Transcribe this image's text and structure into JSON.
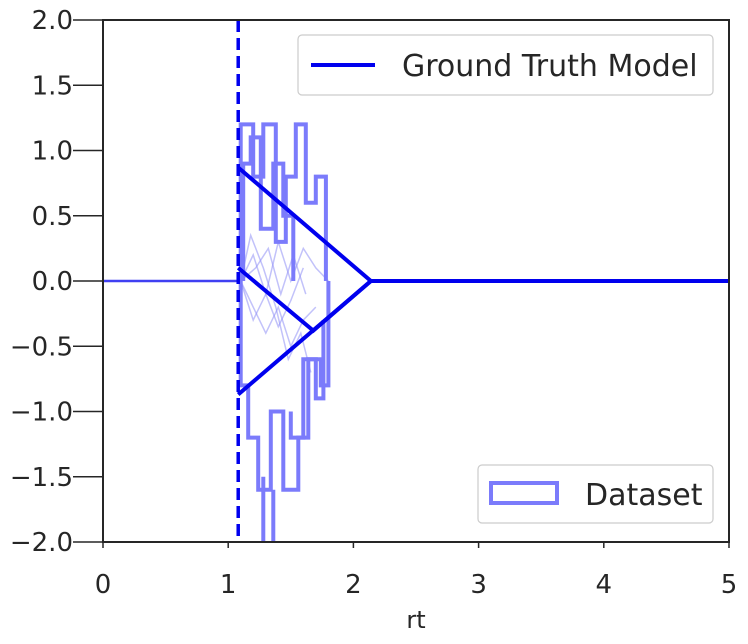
{
  "chart_data": {
    "type": "line",
    "title": "",
    "xlabel": "rt",
    "ylabel": "",
    "xlim": [
      0,
      5
    ],
    "ylim": [
      -2.0,
      2.0
    ],
    "grid": false,
    "x_ticks": [
      "0",
      "1",
      "2",
      "3",
      "4",
      "5"
    ],
    "y_ticks": [
      "2.0",
      "1.5",
      "1.0",
      "0.5",
      "0.0",
      "−0.5",
      "−1.0",
      "−1.5",
      "−2.0"
    ],
    "colors": {
      "model": "#0000ee",
      "dataset": "#7b7bfb",
      "trace": "#9090f5"
    },
    "legend_model": {
      "label": "Ground Truth Model",
      "position": "upper right"
    },
    "legend_dataset": {
      "label": "Dataset",
      "position": "lower right"
    },
    "ground_truth_model": {
      "non_decision_time": 1.08,
      "upper_boundary": [
        [
          1.08,
          0.87
        ],
        [
          2.14,
          0.0
        ],
        [
          5.0,
          0.0
        ]
      ],
      "lower_boundary": [
        [
          1.08,
          -0.87
        ],
        [
          2.14,
          0.0
        ],
        [
          5.0,
          0.0
        ]
      ],
      "starting_point_line": [
        [
          0.0,
          0.0
        ],
        [
          1.08,
          0.0
        ]
      ],
      "drift_path": [
        [
          1.08,
          0.1
        ],
        [
          1.68,
          -0.38
        ],
        [
          2.14,
          0.0
        ]
      ]
    },
    "dataset": {
      "histogram_outlines": [
        [
          [
            1.1,
            0.0
          ],
          [
            1.1,
            1.2
          ],
          [
            1.2,
            1.2
          ],
          [
            1.2,
            0.8
          ],
          [
            1.28,
            0.8
          ],
          [
            1.28,
            1.2
          ],
          [
            1.38,
            1.2
          ],
          [
            1.38,
            0.3
          ],
          [
            1.46,
            0.3
          ],
          [
            1.46,
            0.8
          ],
          [
            1.54,
            0.8
          ],
          [
            1.54,
            1.2
          ],
          [
            1.62,
            1.2
          ],
          [
            1.62,
            0.6
          ],
          [
            1.7,
            0.6
          ],
          [
            1.7,
            0.8
          ],
          [
            1.78,
            0.8
          ],
          [
            1.78,
            0.0
          ]
        ],
        [
          [
            1.12,
            0.0
          ],
          [
            1.12,
            0.9
          ],
          [
            1.18,
            0.9
          ],
          [
            1.18,
            1.1
          ],
          [
            1.26,
            1.1
          ],
          [
            1.26,
            0.4
          ],
          [
            1.36,
            0.4
          ],
          [
            1.36,
            0.9
          ],
          [
            1.44,
            0.9
          ],
          [
            1.44,
            0.5
          ],
          [
            1.52,
            0.5
          ],
          [
            1.52,
            0.0
          ]
        ],
        [
          [
            1.1,
            0.0
          ],
          [
            1.1,
            -0.8
          ],
          [
            1.16,
            -0.8
          ],
          [
            1.16,
            -1.2
          ],
          [
            1.24,
            -1.2
          ],
          [
            1.24,
            -1.6
          ],
          [
            1.34,
            -1.6
          ],
          [
            1.34,
            -1.0
          ],
          [
            1.44,
            -1.0
          ],
          [
            1.44,
            -1.6
          ],
          [
            1.56,
            -1.6
          ],
          [
            1.56,
            -1.2
          ],
          [
            1.64,
            -1.2
          ],
          [
            1.64,
            -0.6
          ],
          [
            1.74,
            -0.6
          ],
          [
            1.74,
            -0.8
          ],
          [
            1.8,
            -0.8
          ],
          [
            1.8,
            0.0
          ]
        ],
        [
          [
            1.28,
            -1.5
          ],
          [
            1.28,
            -2.0
          ]
        ],
        [
          [
            1.36,
            -1.6
          ],
          [
            1.36,
            -2.0
          ]
        ],
        [
          [
            1.5,
            -1.0
          ],
          [
            1.5,
            -1.2
          ],
          [
            1.6,
            -1.2
          ],
          [
            1.6,
            -0.6
          ],
          [
            1.7,
            -0.6
          ],
          [
            1.7,
            -0.9
          ],
          [
            1.76,
            -0.9
          ],
          [
            1.76,
            -0.3
          ]
        ]
      ],
      "traces": [
        [
          [
            1.1,
            0.0
          ],
          [
            1.2,
            0.2
          ],
          [
            1.3,
            -0.1
          ],
          [
            1.4,
            0.3
          ],
          [
            1.5,
            0.0
          ],
          [
            1.6,
            0.25
          ],
          [
            1.7,
            0.1
          ],
          [
            1.8,
            0.0
          ]
        ],
        [
          [
            1.1,
            0.0
          ],
          [
            1.2,
            -0.2
          ],
          [
            1.3,
            -0.4
          ],
          [
            1.4,
            -0.2
          ],
          [
            1.5,
            -0.5
          ],
          [
            1.6,
            -0.3
          ],
          [
            1.7,
            -0.2
          ]
        ],
        [
          [
            1.1,
            0.0
          ],
          [
            1.18,
            0.35
          ],
          [
            1.28,
            0.1
          ],
          [
            1.38,
            -0.2
          ],
          [
            1.48,
            -0.6
          ],
          [
            1.58,
            -0.4
          ],
          [
            1.66,
            -0.7
          ]
        ],
        [
          [
            1.1,
            0.0
          ],
          [
            1.22,
            0.1
          ],
          [
            1.32,
            0.25
          ],
          [
            1.42,
            -0.1
          ],
          [
            1.52,
            0.2
          ],
          [
            1.62,
            -0.1
          ]
        ],
        [
          [
            1.1,
            0.0
          ],
          [
            1.2,
            -0.3
          ],
          [
            1.3,
            -0.1
          ],
          [
            1.4,
            -0.35
          ],
          [
            1.5,
            -0.15
          ],
          [
            1.6,
            0.1
          ]
        ]
      ]
    }
  }
}
